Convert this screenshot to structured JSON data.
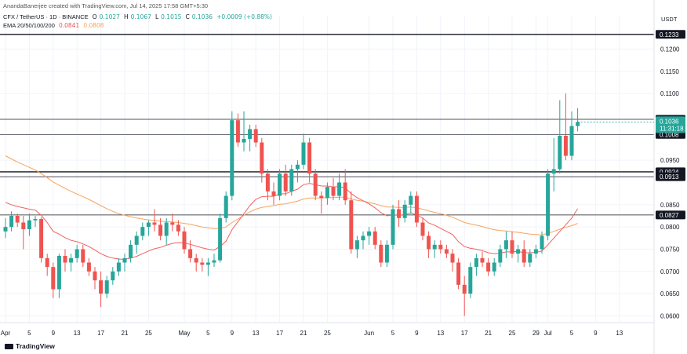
{
  "header": {
    "credit": "AnandaBanerjee created with TradingView.com, Jul 14, 2025 17:58 GMT+5:30",
    "symbol": "CFX / TetherUS · 1D · BINANCE",
    "o_label": "O",
    "o_value": "0.1027",
    "h_label": "H",
    "h_value": "0.1067",
    "l_label": "L",
    "l_value": "0.1015",
    "c_label": "C",
    "c_value": "0.1036",
    "change": "+0.0009 (+0.88%)",
    "ema_label": "EMA 20/50/100/200",
    "ema20_value": "0.0841",
    "ema50_value": "0.0808"
  },
  "unit": "USDT",
  "logo_text": "TradingView",
  "colors": {
    "up": "#26a69a",
    "down": "#ef5350",
    "ema20": "#f0625e",
    "ema50": "#f7a35c",
    "level": "#131722",
    "text": "#131722"
  },
  "chart_data": {
    "type": "candlestick",
    "yticks": [
      "0.1200",
      "0.1150",
      "0.1100",
      "0.0950",
      "0.0850",
      "0.0800",
      "0.0750",
      "0.0700",
      "0.0650",
      "0.0600"
    ],
    "ylim": [
      0.0585,
      0.1275
    ],
    "xticks": [
      {
        "label": "Apr",
        "day": 0
      },
      {
        "label": "5",
        "day": 4
      },
      {
        "label": "9",
        "day": 8
      },
      {
        "label": "13",
        "day": 12
      },
      {
        "label": "17",
        "day": 16
      },
      {
        "label": "21",
        "day": 20
      },
      {
        "label": "25",
        "day": 24
      },
      {
        "label": "May",
        "day": 30
      },
      {
        "label": "5",
        "day": 34
      },
      {
        "label": "9",
        "day": 38
      },
      {
        "label": "13",
        "day": 42
      },
      {
        "label": "17",
        "day": 46
      },
      {
        "label": "21",
        "day": 50
      },
      {
        "label": "25",
        "day": 54
      },
      {
        "label": "Jun",
        "day": 61
      },
      {
        "label": "5",
        "day": 65
      },
      {
        "label": "9",
        "day": 69
      },
      {
        "label": "13",
        "day": 73
      },
      {
        "label": "17",
        "day": 77
      },
      {
        "label": "21",
        "day": 81
      },
      {
        "label": "25",
        "day": 85
      },
      {
        "label": "29",
        "day": 89
      },
      {
        "label": "Jul",
        "day": 91
      },
      {
        "label": "5",
        "day": 95
      },
      {
        "label": "9",
        "day": 99
      },
      {
        "label": "13",
        "day": 103
      }
    ],
    "levels": [
      {
        "value": 0.1233,
        "label": "0.1233",
        "weight": "thick"
      },
      {
        "value": 0.1042,
        "label": "0.1042",
        "weight": "thin"
      },
      {
        "value": 0.1008,
        "label": "0.1008",
        "weight": "thin"
      },
      {
        "value": 0.0924,
        "label": "0.0924",
        "weight": "thick"
      },
      {
        "value": 0.0913,
        "label": "0.0913",
        "weight": "thin"
      },
      {
        "value": 0.0827,
        "label": "0.0827",
        "weight": "thin"
      }
    ],
    "last_price": {
      "value": 0.1036,
      "label": "0.1036",
      "countdown": "11:31:18"
    },
    "candles": [
      [
        0.079,
        0.082,
        0.0775,
        0.08
      ],
      [
        0.08,
        0.0835,
        0.079,
        0.0825
      ],
      [
        0.0825,
        0.083,
        0.08,
        0.081
      ],
      [
        0.081,
        0.0825,
        0.075,
        0.0795
      ],
      [
        0.0795,
        0.083,
        0.078,
        0.0815
      ],
      [
        0.0815,
        0.0825,
        0.08,
        0.0818
      ],
      [
        0.0818,
        0.0822,
        0.072,
        0.073
      ],
      [
        0.073,
        0.074,
        0.069,
        0.071
      ],
      [
        0.071,
        0.072,
        0.064,
        0.066
      ],
      [
        0.066,
        0.074,
        0.064,
        0.0735
      ],
      [
        0.0735,
        0.075,
        0.07,
        0.072
      ],
      [
        0.072,
        0.074,
        0.07,
        0.073
      ],
      [
        0.073,
        0.076,
        0.072,
        0.075
      ],
      [
        0.075,
        0.076,
        0.071,
        0.072
      ],
      [
        0.072,
        0.073,
        0.069,
        0.07
      ],
      [
        0.07,
        0.071,
        0.066,
        0.068
      ],
      [
        0.068,
        0.07,
        0.062,
        0.065
      ],
      [
        0.065,
        0.069,
        0.064,
        0.068
      ],
      [
        0.068,
        0.071,
        0.067,
        0.07
      ],
      [
        0.07,
        0.073,
        0.069,
        0.072
      ],
      [
        0.072,
        0.074,
        0.07,
        0.073
      ],
      [
        0.073,
        0.077,
        0.072,
        0.076
      ],
      [
        0.076,
        0.079,
        0.074,
        0.078
      ],
      [
        0.078,
        0.081,
        0.077,
        0.08
      ],
      [
        0.08,
        0.0815,
        0.078,
        0.081
      ],
      [
        0.081,
        0.084,
        0.079,
        0.0805
      ],
      [
        0.0805,
        0.082,
        0.077,
        0.078
      ],
      [
        0.078,
        0.082,
        0.076,
        0.081
      ],
      [
        0.081,
        0.083,
        0.079,
        0.0805
      ],
      [
        0.0805,
        0.0815,
        0.078,
        0.079
      ],
      [
        0.079,
        0.08,
        0.074,
        0.075
      ],
      [
        0.075,
        0.077,
        0.072,
        0.073
      ],
      [
        0.073,
        0.074,
        0.07,
        0.072
      ],
      [
        0.072,
        0.073,
        0.07,
        0.0715
      ],
      [
        0.0715,
        0.073,
        0.069,
        0.072
      ],
      [
        0.072,
        0.074,
        0.071,
        0.0725
      ],
      [
        0.0725,
        0.083,
        0.072,
        0.082
      ],
      [
        0.082,
        0.088,
        0.081,
        0.087
      ],
      [
        0.087,
        0.106,
        0.086,
        0.104
      ],
      [
        0.104,
        0.1055,
        0.098,
        0.099
      ],
      [
        0.099,
        0.106,
        0.097,
        0.0998
      ],
      [
        0.0998,
        0.103,
        0.097,
        0.102
      ],
      [
        0.102,
        0.103,
        0.098,
        0.099
      ],
      [
        0.099,
        0.1,
        0.09,
        0.092
      ],
      [
        0.092,
        0.093,
        0.086,
        0.088
      ],
      [
        0.088,
        0.09,
        0.085,
        0.087
      ],
      [
        0.087,
        0.093,
        0.086,
        0.092
      ],
      [
        0.092,
        0.094,
        0.087,
        0.088
      ],
      [
        0.088,
        0.094,
        0.087,
        0.093
      ],
      [
        0.093,
        0.095,
        0.09,
        0.094
      ],
      [
        0.094,
        0.101,
        0.093,
        0.099
      ],
      [
        0.099,
        0.1,
        0.09,
        0.092
      ],
      [
        0.092,
        0.093,
        0.086,
        0.087
      ],
      [
        0.087,
        0.088,
        0.083,
        0.0865
      ],
      [
        0.0865,
        0.09,
        0.085,
        0.089
      ],
      [
        0.089,
        0.091,
        0.086,
        0.087
      ],
      [
        0.087,
        0.092,
        0.086,
        0.09
      ],
      [
        0.09,
        0.093,
        0.085,
        0.086
      ],
      [
        0.086,
        0.088,
        0.074,
        0.075
      ],
      [
        0.075,
        0.078,
        0.073,
        0.077
      ],
      [
        0.077,
        0.079,
        0.075,
        0.078
      ],
      [
        0.078,
        0.08,
        0.076,
        0.079
      ],
      [
        0.079,
        0.08,
        0.075,
        0.076
      ],
      [
        0.076,
        0.077,
        0.071,
        0.072
      ],
      [
        0.072,
        0.077,
        0.071,
        0.076
      ],
      [
        0.076,
        0.085,
        0.075,
        0.084
      ],
      [
        0.084,
        0.086,
        0.08,
        0.082
      ],
      [
        0.082,
        0.086,
        0.081,
        0.085
      ],
      [
        0.085,
        0.088,
        0.083,
        0.087
      ],
      [
        0.087,
        0.088,
        0.08,
        0.081
      ],
      [
        0.081,
        0.082,
        0.077,
        0.078
      ],
      [
        0.078,
        0.079,
        0.073,
        0.075
      ],
      [
        0.075,
        0.077,
        0.073,
        0.076
      ],
      [
        0.076,
        0.077,
        0.074,
        0.075
      ],
      [
        0.075,
        0.076,
        0.073,
        0.074
      ],
      [
        0.074,
        0.075,
        0.07,
        0.072
      ],
      [
        0.072,
        0.073,
        0.066,
        0.067
      ],
      [
        0.067,
        0.069,
        0.06,
        0.065
      ],
      [
        0.065,
        0.072,
        0.064,
        0.071
      ],
      [
        0.071,
        0.074,
        0.069,
        0.073
      ],
      [
        0.073,
        0.0745,
        0.071,
        0.072
      ],
      [
        0.072,
        0.073,
        0.069,
        0.07
      ],
      [
        0.07,
        0.073,
        0.069,
        0.072
      ],
      [
        0.072,
        0.076,
        0.071,
        0.075
      ],
      [
        0.075,
        0.079,
        0.073,
        0.077
      ],
      [
        0.077,
        0.079,
        0.073,
        0.074
      ],
      [
        0.074,
        0.076,
        0.072,
        0.075
      ],
      [
        0.075,
        0.077,
        0.071,
        0.072
      ],
      [
        0.072,
        0.075,
        0.071,
        0.074
      ],
      [
        0.074,
        0.076,
        0.073,
        0.075
      ],
      [
        0.075,
        0.079,
        0.074,
        0.078
      ],
      [
        0.078,
        0.093,
        0.077,
        0.092
      ],
      [
        0.092,
        0.1,
        0.088,
        0.093
      ],
      [
        0.093,
        0.1085,
        0.092,
        0.1005
      ],
      [
        0.1005,
        0.11,
        0.095,
        0.096
      ],
      [
        0.096,
        0.106,
        0.095,
        0.1027
      ],
      [
        0.1027,
        0.1067,
        0.1015,
        0.1036
      ]
    ],
    "ema20": [
      0.0855,
      0.085,
      0.0846,
      0.0843,
      0.084,
      0.0838,
      0.0826,
      0.081,
      0.079,
      0.0784,
      0.0776,
      0.077,
      0.0767,
      0.0762,
      0.0756,
      0.0748,
      0.074,
      0.0734,
      0.073,
      0.0728,
      0.0727,
      0.073,
      0.0734,
      0.074,
      0.0746,
      0.0751,
      0.0754,
      0.0759,
      0.0763,
      0.0765,
      0.0764,
      0.0761,
      0.0757,
      0.0753,
      0.075,
      0.0748,
      0.0756,
      0.0768,
      0.0794,
      0.0812,
      0.083,
      0.0848,
      0.0862,
      0.0868,
      0.0869,
      0.0869,
      0.0874,
      0.0875,
      0.088,
      0.0885,
      0.0895,
      0.0898,
      0.0895,
      0.0892,
      0.0892,
      0.089,
      0.0891,
      0.0888,
      0.0875,
      0.0866,
      0.0859,
      0.0852,
      0.0843,
      0.0832,
      0.0825,
      0.0827,
      0.0826,
      0.0828,
      0.0832,
      0.0827,
      0.082,
      0.0809,
      0.0804,
      0.0797,
      0.079,
      0.0783,
      0.0767,
      0.0756,
      0.0752,
      0.075,
      0.0747,
      0.0742,
      0.074,
      0.0741,
      0.0744,
      0.0744,
      0.0745,
      0.0742,
      0.0742,
      0.0743,
      0.0746,
      0.076,
      0.0775,
      0.079,
      0.0805,
      0.082,
      0.0841
    ],
    "ema50": [
      0.096,
      0.0953,
      0.0946,
      0.094,
      0.0934,
      0.0928,
      0.092,
      0.0911,
      0.0901,
      0.0894,
      0.0887,
      0.088,
      0.0874,
      0.0868,
      0.0862,
      0.0855,
      0.0848,
      0.0841,
      0.0835,
      0.083,
      0.0826,
      0.0823,
      0.082,
      0.0818,
      0.0816,
      0.0815,
      0.0813,
      0.0812,
      0.0811,
      0.081,
      0.0808,
      0.0806,
      0.0803,
      0.08,
      0.0798,
      0.0796,
      0.0797,
      0.08,
      0.081,
      0.0818,
      0.0826,
      0.0834,
      0.084,
      0.0844,
      0.0846,
      0.0848,
      0.0851,
      0.0852,
      0.0855,
      0.0858,
      0.0863,
      0.0865,
      0.0865,
      0.0865,
      0.0866,
      0.0866,
      0.0867,
      0.0867,
      0.0863,
      0.086,
      0.0858,
      0.0855,
      0.0852,
      0.0848,
      0.0845,
      0.0845,
      0.0844,
      0.0844,
      0.0845,
      0.0843,
      0.084,
      0.0836,
      0.0833,
      0.083,
      0.0826,
      0.0822,
      0.0816,
      0.081,
      0.0807,
      0.0804,
      0.0801,
      0.0797,
      0.0794,
      0.0792,
      0.0791,
      0.0789,
      0.0788,
      0.0786,
      0.0784,
      0.0783,
      0.0782,
      0.0786,
      0.079,
      0.0795,
      0.0799,
      0.0803,
      0.0808
    ]
  }
}
